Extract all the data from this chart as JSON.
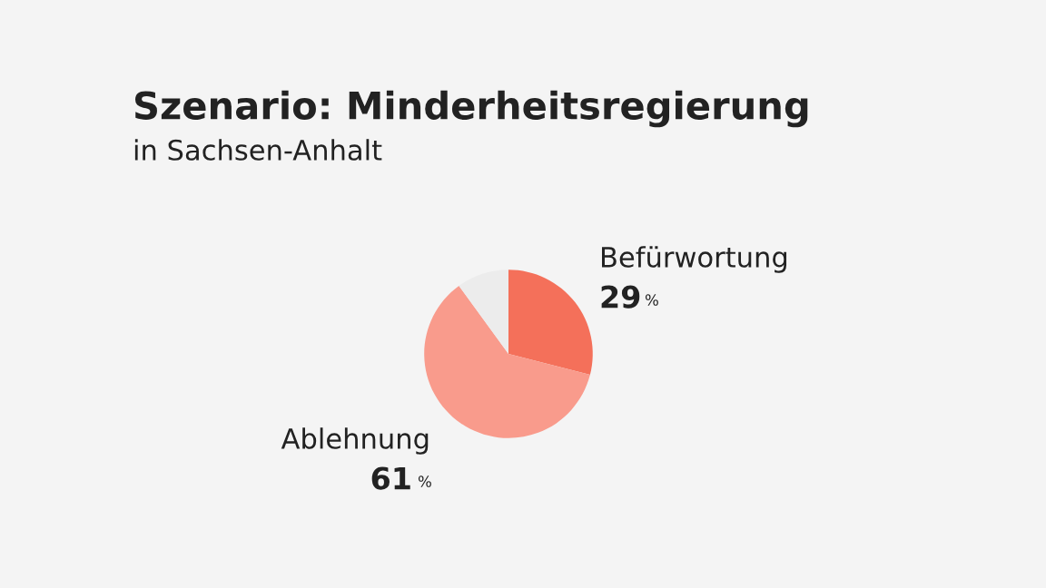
{
  "chart_data": {
    "type": "pie",
    "title": "Szenario: Minderheitsregierung",
    "subtitle": "in Sachsen-Anhalt",
    "categories": [
      "Befürwortung",
      "Ablehnung",
      null
    ],
    "values": [
      29,
      61,
      10
    ],
    "colors": [
      "#f4705a",
      "#f99b8c",
      "#ececec"
    ],
    "value_labels": [
      "29 %",
      "61 %",
      null
    ]
  }
}
